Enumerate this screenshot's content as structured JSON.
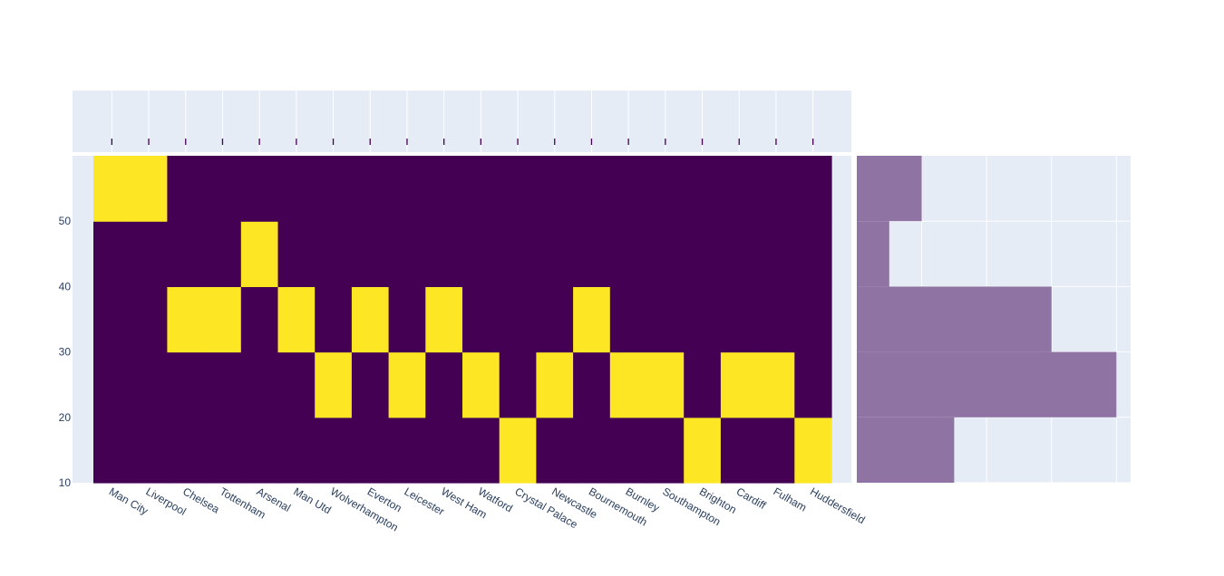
{
  "chart_data": {
    "type": "heatmap",
    "categories": [
      "Man City",
      "Liverpool",
      "Chelsea",
      "Tottenham",
      "Arsenal",
      "Man Utd",
      "Wolverhampton",
      "Everton",
      "Leicester",
      "West Ham",
      "Watford",
      "Crystal Palace",
      "Newcastle",
      "Bournemouth",
      "Burnley",
      "Southampton",
      "Brighton",
      "Cardiff",
      "Fulham",
      "Huddersfield"
    ],
    "y_bins": [
      10,
      20,
      30,
      40,
      50,
      60
    ],
    "y_ticks": [
      10,
      20,
      30,
      40,
      50
    ],
    "ylim": [
      10,
      60
    ],
    "points_bin_lower": [
      50,
      50,
      30,
      30,
      40,
      30,
      20,
      30,
      20,
      30,
      20,
      10,
      20,
      30,
      20,
      20,
      10,
      20,
      20,
      10
    ],
    "marginal_y_histogram": {
      "bins": [
        "10-20",
        "20-30",
        "30-40",
        "40-50",
        "50-60"
      ],
      "counts": [
        3,
        8,
        6,
        1,
        2
      ],
      "color": "#636efa"
    },
    "marginal_x_rug": true,
    "colors": {
      "low": "#440154",
      "high": "#fde725",
      "plot_bg": "#e5ecf6",
      "grid": "#ffffff",
      "hist": "#8f74a3",
      "rug": "#440154"
    }
  }
}
